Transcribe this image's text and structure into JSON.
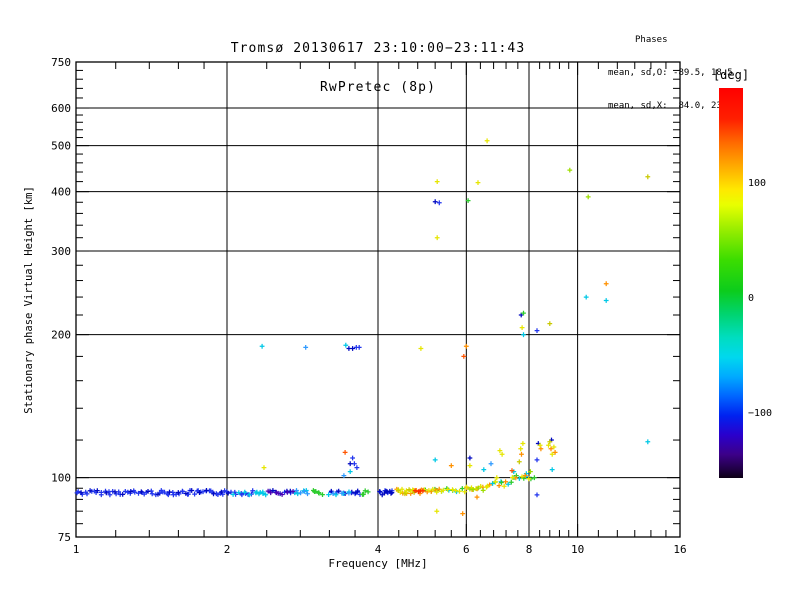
{
  "header": {
    "title_line1": "Tromsø 20130617 23:10:00−23:11:43",
    "title_line2": "RwPretec (8p)",
    "phases": {
      "heading": "Phases",
      "o_line": "mean, sd,O: -89.5, 18.5",
      "x_line": "mean, sd,X:  84.0, 23.5"
    }
  },
  "chart_data": {
    "type": "scatter",
    "title": "Tromsø 20130617 23:10:00−23:11:43 / RwPretec (8p)",
    "xlabel": "Frequency [MHz]",
    "ylabel": "Stationary phase Virtual Height [km]",
    "x_scale": "log",
    "y_scale": "log",
    "xlim": [
      1,
      16
    ],
    "ylim": [
      75,
      750
    ],
    "grid": true,
    "x_major_ticks": [
      1,
      2,
      4,
      6,
      8,
      10,
      16
    ],
    "x_minor_ticks": [
      1.2,
      1.4,
      1.6,
      1.8,
      2.4,
      2.8,
      3.2,
      3.6,
      4.4,
      4.8,
      5.2,
      5.6,
      6.4,
      6.8,
      7.2,
      7.6,
      8.4,
      8.8,
      9.2,
      9.6,
      11,
      12,
      13,
      14,
      15
    ],
    "y_major_ticks": [
      75,
      100,
      200,
      300,
      400,
      500,
      600,
      750
    ],
    "y_minor_ticks": [
      80,
      85,
      90,
      95,
      120,
      140,
      160,
      180,
      220,
      240,
      260,
      280,
      320,
      340,
      360,
      380,
      420,
      440,
      460,
      480,
      520,
      540,
      560,
      580,
      630,
      660,
      690,
      720
    ],
    "x_gridlines": [
      2,
      4,
      6,
      8,
      10
    ],
    "y_gridlines": [
      100,
      200,
      300,
      400,
      500,
      600
    ],
    "colorbar": {
      "label": "[deg]",
      "ticks": [
        100,
        0,
        -100
      ],
      "gradient": [
        {
          "p": 0,
          "c": "#ff0000"
        },
        {
          "p": 8,
          "c": "#ff2000"
        },
        {
          "p": 14,
          "c": "#ff6a00"
        },
        {
          "p": 20,
          "c": "#ffaa00"
        },
        {
          "p": 26,
          "c": "#ffe800"
        },
        {
          "p": 30,
          "c": "#e8ff00"
        },
        {
          "p": 36,
          "c": "#9cee00"
        },
        {
          "p": 44,
          "c": "#3cdd00"
        },
        {
          "p": 52,
          "c": "#0ccc1c"
        },
        {
          "p": 58,
          "c": "#00d470"
        },
        {
          "p": 64,
          "c": "#00ddc0"
        },
        {
          "p": 69,
          "c": "#00d8ee"
        },
        {
          "p": 74,
          "c": "#00aaff"
        },
        {
          "p": 79,
          "c": "#0066ff"
        },
        {
          "p": 84,
          "c": "#0022f0"
        },
        {
          "p": 89,
          "c": "#2a00cc"
        },
        {
          "p": 94,
          "c": "#3c0088"
        },
        {
          "p": 98,
          "c": "#1e0040"
        },
        {
          "p": 100,
          "c": "#0c0014"
        }
      ]
    },
    "palette": {
      "red": "#ff2a00",
      "redorange": "#ff5500",
      "orange": "#ff9100",
      "yellow": "#e6e600",
      "olive": "#c9c900",
      "yellowgreen": "#9ddd00",
      "green": "#2ecc2e",
      "teal": "#00cc88",
      "cyan": "#00c8e6",
      "skyblue": "#2e9aff",
      "blue": "#2236ee",
      "navy": "#0008c0",
      "violet": "#4a00b4"
    },
    "band_segments": [
      {
        "f1": 1.0,
        "f2": 1.5,
        "h": 93,
        "colors": [
          "blue",
          "blue",
          "navy",
          "blue"
        ],
        "n": 42
      },
      {
        "f1": 1.5,
        "f2": 2.03,
        "h": 93,
        "colors": [
          "blue",
          "blue",
          "blue",
          "navy"
        ],
        "n": 36
      },
      {
        "f1": 2.03,
        "f2": 2.28,
        "h": 93,
        "colors": [
          "blue",
          "cyan",
          "blue"
        ],
        "n": 14
      },
      {
        "f1": 2.28,
        "f2": 2.4,
        "h": 93,
        "colors": [
          "cyan"
        ],
        "n": 6
      },
      {
        "f1": 2.4,
        "f2": 2.55,
        "h": 93,
        "colors": [
          "violet",
          "navy"
        ],
        "n": 7
      },
      {
        "f1": 2.55,
        "f2": 2.72,
        "h": 93,
        "colors": [
          "navy",
          "violet",
          "blue"
        ],
        "n": 8
      },
      {
        "f1": 2.72,
        "f2": 2.92,
        "h": 93,
        "colors": [
          "cyan",
          "skyblue"
        ],
        "n": 8
      },
      {
        "f1": 2.95,
        "f2": 3.1,
        "h": 93,
        "colors": [
          "green"
        ],
        "n": 6
      },
      {
        "f1": 3.18,
        "f2": 3.55,
        "h": 93,
        "colors": [
          "cyan",
          "blue",
          "navy",
          "skyblue"
        ],
        "n": 14
      },
      {
        "f1": 3.55,
        "f2": 3.7,
        "h": 93,
        "colors": [
          "navy",
          "blue"
        ],
        "n": 6
      },
      {
        "f1": 3.7,
        "f2": 3.82,
        "h": 93,
        "colors": [
          "green"
        ],
        "n": 4
      },
      {
        "f1": 4.03,
        "f2": 4.3,
        "h": 93,
        "colors": [
          "navy",
          "blue",
          "navy"
        ],
        "n": 12
      },
      {
        "f1": 4.35,
        "f2": 4.75,
        "h": 93.5,
        "colors": [
          "orange",
          "yellow",
          "olive",
          "yellow"
        ],
        "n": 16
      },
      {
        "f1": 4.75,
        "f2": 4.95,
        "h": 93.5,
        "colors": [
          "red",
          "orange"
        ],
        "n": 7
      },
      {
        "f1": 4.95,
        "f2": 5.35,
        "h": 94,
        "colors": [
          "yellow",
          "green",
          "orange"
        ],
        "n": 13
      },
      {
        "f1": 5.35,
        "f2": 5.95,
        "h": 94,
        "colors": [
          "cyan",
          "yellow",
          "green",
          "yellow"
        ],
        "n": 12
      },
      {
        "f1": 5.95,
        "f2": 6.6,
        "h": 95,
        "colors": [
          "yellow",
          "orange",
          "yellowgreen"
        ],
        "n": 13
      },
      {
        "f1": 6.6,
        "f2": 7.4,
        "h": 97,
        "colors": [
          "yellow",
          "orange",
          "cyan",
          "green"
        ],
        "n": 12
      },
      {
        "f1": 7.4,
        "f2": 8.1,
        "h": 100,
        "colors": [
          "yellow",
          "green",
          "orange",
          "cyan"
        ],
        "n": 10
      }
    ],
    "points": [
      [
        6.6,
        512,
        "yellow"
      ],
      [
        9.65,
        444,
        "yellowgreen"
      ],
      [
        13.8,
        430,
        "olive"
      ],
      [
        5.25,
        420,
        "yellow"
      ],
      [
        6.33,
        418,
        "yellow"
      ],
      [
        5.2,
        381,
        "navy"
      ],
      [
        5.3,
        379,
        "blue"
      ],
      [
        6.05,
        383,
        "green"
      ],
      [
        10.5,
        390,
        "yellowgreen"
      ],
      [
        5.25,
        320,
        "yellow"
      ],
      [
        11.4,
        256,
        "orange"
      ],
      [
        10.4,
        240,
        "cyan"
      ],
      [
        11.4,
        236,
        "cyan"
      ],
      [
        7.8,
        222,
        "green"
      ],
      [
        7.72,
        220,
        "navy"
      ],
      [
        8.8,
        211,
        "olive"
      ],
      [
        8.3,
        204,
        "blue"
      ],
      [
        7.75,
        207,
        "yellow"
      ],
      [
        7.8,
        200,
        "cyan"
      ],
      [
        2.35,
        189,
        "cyan"
      ],
      [
        2.87,
        188,
        "skyblue"
      ],
      [
        3.45,
        190,
        "cyan"
      ],
      [
        3.5,
        187,
        "navy"
      ],
      [
        3.56,
        187,
        "navy"
      ],
      [
        3.62,
        188,
        "blue"
      ],
      [
        3.67,
        188,
        "blue"
      ],
      [
        4.87,
        187,
        "yellow"
      ],
      [
        6.0,
        189,
        "orange"
      ],
      [
        5.93,
        180,
        "redorange"
      ],
      [
        2.37,
        105,
        "yellow"
      ],
      [
        3.52,
        107,
        "navy"
      ],
      [
        3.59,
        107,
        "blue"
      ],
      [
        3.63,
        105,
        "blue"
      ],
      [
        3.52,
        103,
        "cyan"
      ],
      [
        3.42,
        101,
        "skyblue"
      ],
      [
        3.44,
        113,
        "redorange"
      ],
      [
        3.56,
        110,
        "blue"
      ],
      [
        5.2,
        109,
        "cyan"
      ],
      [
        5.6,
        106,
        "orange"
      ],
      [
        6.1,
        110,
        "navy"
      ],
      [
        7.0,
        114,
        "yellow"
      ],
      [
        7.07,
        112,
        "yellow"
      ],
      [
        5.24,
        85,
        "yellow"
      ],
      [
        5.9,
        84,
        "orange"
      ],
      [
        6.3,
        91,
        "orange"
      ],
      [
        8.3,
        92,
        "blue"
      ],
      [
        7.4,
        103.5,
        "redorange"
      ],
      [
        7.46,
        103,
        "cyan"
      ],
      [
        7.7,
        115,
        "yellow"
      ],
      [
        7.73,
        112,
        "orange"
      ],
      [
        7.78,
        118,
        "yellow"
      ],
      [
        7.65,
        108,
        "olive"
      ],
      [
        8.35,
        118,
        "navy"
      ],
      [
        8.42,
        117,
        "yellow"
      ],
      [
        8.45,
        115,
        "orange"
      ],
      [
        8.3,
        109,
        "blue"
      ],
      [
        8.75,
        117,
        "yellow"
      ],
      [
        8.8,
        119,
        "olive"
      ],
      [
        8.85,
        115,
        "orange"
      ],
      [
        8.9,
        112,
        "yellow"
      ],
      [
        8.97,
        116,
        "yellow"
      ],
      [
        9.02,
        113,
        "orange"
      ],
      [
        8.87,
        120,
        "navy"
      ],
      [
        8.9,
        104,
        "cyan"
      ],
      [
        8.2,
        100,
        "green"
      ],
      [
        7.9,
        102,
        "cyan"
      ],
      [
        8.05,
        103,
        "yellowgreen"
      ],
      [
        7.55,
        101,
        "green"
      ],
      [
        13.8,
        119,
        "cyan"
      ],
      [
        6.1,
        106,
        "yellow"
      ],
      [
        6.5,
        104,
        "cyan"
      ],
      [
        6.72,
        107,
        "skyblue"
      ],
      [
        6.9,
        100,
        "yellow"
      ]
    ]
  }
}
